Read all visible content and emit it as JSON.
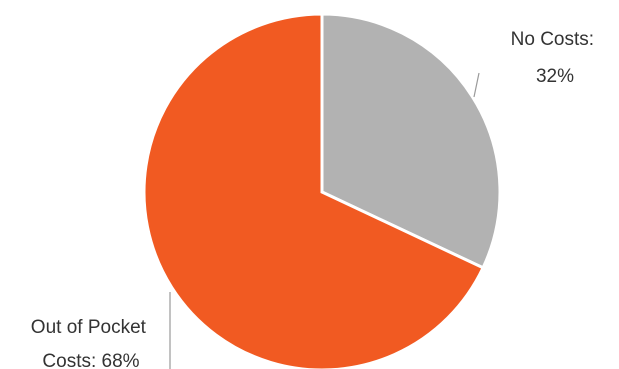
{
  "chart_data": {
    "type": "pie",
    "title": "",
    "legend": "none",
    "start_angle_deg": 0,
    "direction": "clockwise",
    "slices": [
      {
        "name": "No Costs",
        "value": 32,
        "label_lines": [
          "No Costs:",
          "32%"
        ],
        "color": "#b2b2b2"
      },
      {
        "name": "Out of Pocket Costs",
        "value": 68,
        "label_lines": [
          "Out of Pocket",
          "Costs: 68%"
        ],
        "color": "#f15a22"
      }
    ]
  }
}
